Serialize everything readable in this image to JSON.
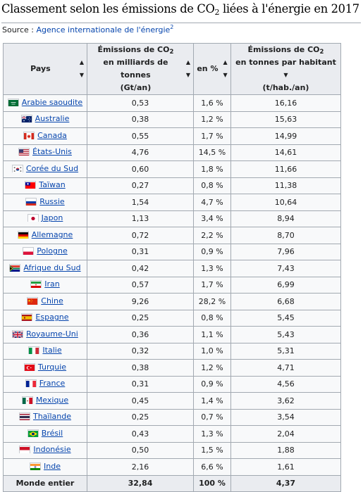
{
  "heading": {
    "text_before": "Classement selon les émissions de CO",
    "sub": "2",
    "text_after": " liées à l'énergie en 2017"
  },
  "source": {
    "label": "Source : ",
    "link_text": "Agence internationale de l'énergie",
    "ref": "2"
  },
  "table": {
    "headers": {
      "country": "Pays",
      "emissions": {
        "line1_before": "Émissions de CO",
        "line1_sub": "2",
        "line2": "en milliards de tonnes",
        "line3": "(Gt/an)"
      },
      "percent": "en %",
      "per_capita": {
        "line1_before": "Émissions de CO",
        "line1_sub": "2",
        "line2": "en tonnes par habitant",
        "line3": "(t/hab./an)"
      }
    },
    "sort_icons": {
      "sortable": "sort-both-icon",
      "sorted_desc": "sort-desc-icon"
    },
    "rows": [
      {
        "country": "Arabie saoudite",
        "flag": "flag-saudi-arabia",
        "gt": "0,53",
        "pct": "1,6 %",
        "per_capita": "16,16"
      },
      {
        "country": "Australie",
        "flag": "flag-australia",
        "gt": "0,38",
        "pct": "1,2 %",
        "per_capita": "15,63"
      },
      {
        "country": "Canada",
        "flag": "flag-canada",
        "gt": "0,55",
        "pct": "1,7 %",
        "per_capita": "14,99"
      },
      {
        "country": "États-Unis",
        "flag": "flag-united-states",
        "gt": "4,76",
        "pct": "14,5 %",
        "per_capita": "14,61"
      },
      {
        "country": "Corée du Sud",
        "flag": "flag-south-korea",
        "gt": "0,60",
        "pct": "1,8 %",
        "per_capita": "11,66"
      },
      {
        "country": "Taïwan",
        "flag": "flag-taiwan",
        "gt": "0,27",
        "pct": "0,8 %",
        "per_capita": "11,38"
      },
      {
        "country": "Russie",
        "flag": "flag-russia",
        "gt": "1,54",
        "pct": "4,7 %",
        "per_capita": "10,64"
      },
      {
        "country": "Japon",
        "flag": "flag-japan",
        "gt": "1,13",
        "pct": "3,4 %",
        "per_capita": "8,94"
      },
      {
        "country": "Allemagne",
        "flag": "flag-germany",
        "gt": "0,72",
        "pct": "2,2 %",
        "per_capita": "8,70"
      },
      {
        "country": "Pologne",
        "flag": "flag-poland",
        "gt": "0,31",
        "pct": "0,9 %",
        "per_capita": "7,96"
      },
      {
        "country": "Afrique du Sud",
        "flag": "flag-south-africa",
        "gt": "0,42",
        "pct": "1,3 %",
        "per_capita": "7,43"
      },
      {
        "country": "Iran",
        "flag": "flag-iran",
        "gt": "0,57",
        "pct": "1,7 %",
        "per_capita": "6,99"
      },
      {
        "country": "Chine",
        "flag": "flag-china",
        "gt": "9,26",
        "pct": "28,2 %",
        "per_capita": "6,68"
      },
      {
        "country": "Espagne",
        "flag": "flag-spain",
        "gt": "0,25",
        "pct": "0,8 %",
        "per_capita": "5,45"
      },
      {
        "country": "Royaume-Uni",
        "flag": "flag-united-kingdom",
        "gt": "0,36",
        "pct": "1,1 %",
        "per_capita": "5,43"
      },
      {
        "country": "Italie",
        "flag": "flag-italy",
        "gt": "0,32",
        "pct": "1,0 %",
        "per_capita": "5,31"
      },
      {
        "country": "Turquie",
        "flag": "flag-turkey",
        "gt": "0,38",
        "pct": "1,2 %",
        "per_capita": "4,71"
      },
      {
        "country": "France",
        "flag": "flag-france",
        "gt": "0,31",
        "pct": "0,9 %",
        "per_capita": "4,56"
      },
      {
        "country": "Mexique",
        "flag": "flag-mexico",
        "gt": "0,45",
        "pct": "1,4 %",
        "per_capita": "3,62"
      },
      {
        "country": "Thaïlande",
        "flag": "flag-thailand",
        "gt": "0,25",
        "pct": "0,7 %",
        "per_capita": "3,54"
      },
      {
        "country": "Brésil",
        "flag": "flag-brazil",
        "gt": "0,43",
        "pct": "1,3 %",
        "per_capita": "2,04"
      },
      {
        "country": "Indonésie",
        "flag": "flag-indonesia",
        "gt": "0,50",
        "pct": "1,5 %",
        "per_capita": "1,88"
      },
      {
        "country": "Inde",
        "flag": "flag-india",
        "gt": "2,16",
        "pct": "6,6 %",
        "per_capita": "1,61"
      }
    ],
    "total": {
      "label": "Monde entier",
      "gt": "32,84",
      "pct": "100 %",
      "per_capita": "4,37"
    }
  },
  "colors": {
    "link": "#0645ad",
    "header_bg": "#eaecf0",
    "cell_bg": "#f8f9fa",
    "border": "#a2a9b1"
  }
}
